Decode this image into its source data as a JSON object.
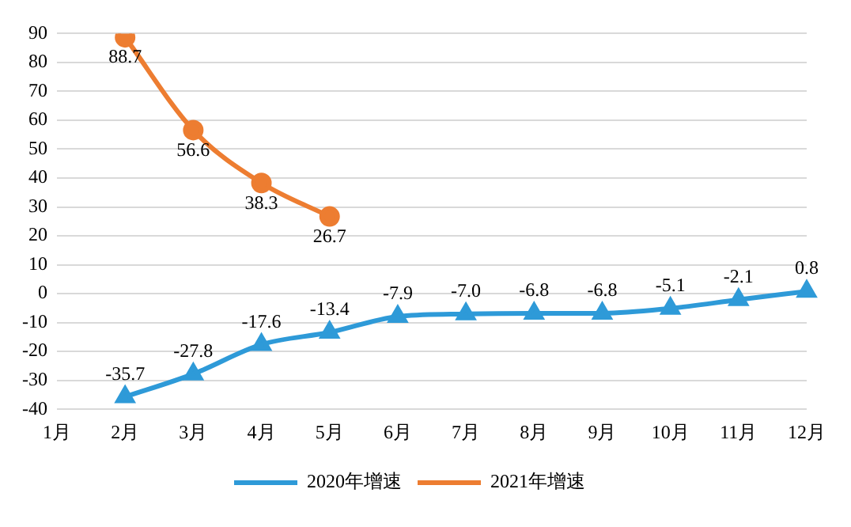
{
  "chart_data": {
    "type": "line",
    "categories": [
      "1月",
      "2月",
      "3月",
      "4月",
      "5月",
      "6月",
      "7月",
      "8月",
      "9月",
      "10月",
      "11月",
      "12月"
    ],
    "series": [
      {
        "name": "2020年增速",
        "color": "#2e9ad8",
        "marker": "triangle",
        "values": [
          null,
          -35.7,
          -27.8,
          -17.6,
          -13.4,
          -7.9,
          -7.0,
          -6.8,
          -6.8,
          -5.1,
          -2.1,
          0.8
        ],
        "value_labels": [
          null,
          "-35.7",
          "-27.8",
          "-17.6",
          "-13.4",
          "-7.9",
          "-7.0",
          "-6.8",
          "-6.8",
          "-5.1",
          "-2.1",
          "0.8"
        ]
      },
      {
        "name": "2021年增速",
        "color": "#ed7d31",
        "marker": "circle",
        "values": [
          null,
          88.7,
          56.6,
          38.3,
          26.7,
          null,
          null,
          null,
          null,
          null,
          null,
          null
        ],
        "value_labels": [
          null,
          "88.7",
          "56.6",
          "38.3",
          "26.7",
          null,
          null,
          null,
          null,
          null,
          null,
          null
        ]
      }
    ],
    "ylim": [
      -40,
      90
    ],
    "yticks": [
      -40,
      -30,
      -20,
      -10,
      0,
      10,
      20,
      30,
      40,
      50,
      60,
      70,
      80,
      90
    ],
    "grid": "y",
    "legend": "bottom"
  }
}
